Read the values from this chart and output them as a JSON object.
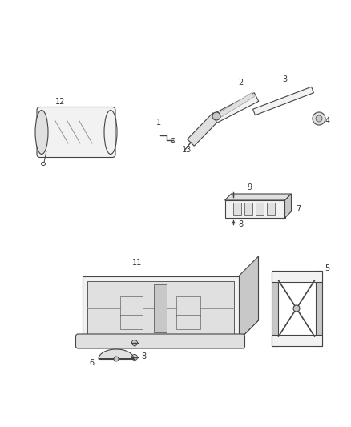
{
  "bg_color": "#ffffff",
  "lc": "#444444",
  "lc2": "#888888",
  "fc_light": "#f2f2f2",
  "fc_mid": "#e0e0e0",
  "fc_dark": "#c8c8c8",
  "label_fs": 7,
  "lw": 0.8
}
